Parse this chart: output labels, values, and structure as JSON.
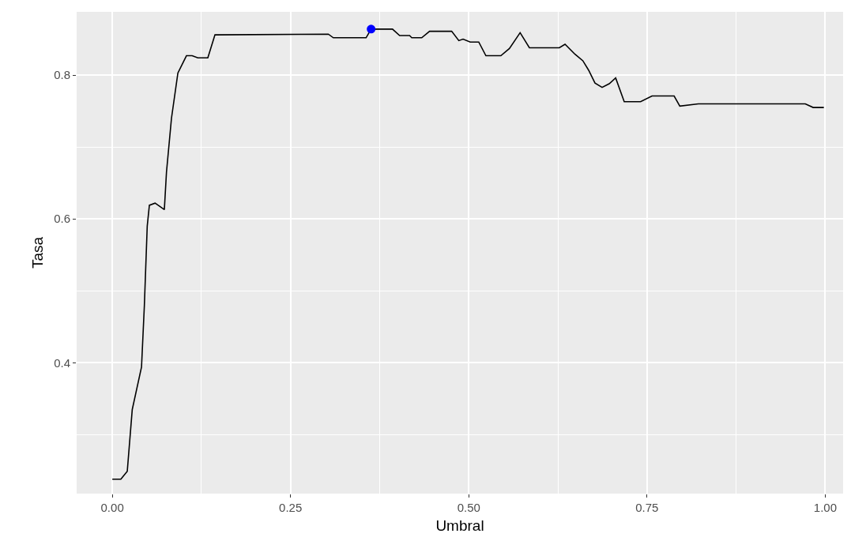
{
  "chart_data": {
    "type": "line",
    "xlabel": "Umbral",
    "ylabel": "Tasa",
    "xlim": [
      -0.05,
      1.025
    ],
    "ylim": [
      0.218,
      0.888
    ],
    "xticks": [
      {
        "value": 0,
        "label": "0.00"
      },
      {
        "value": 0.25,
        "label": "0.25"
      },
      {
        "value": 0.5,
        "label": "0.50"
      },
      {
        "value": 0.75,
        "label": "0.75"
      },
      {
        "value": 1,
        "label": "1.00"
      }
    ],
    "yticks": [
      0.4,
      0.6,
      0.8
    ],
    "grid": true,
    "series": [
      {
        "color": "#000000",
        "marker": "none",
        "line_style": "solid",
        "x": [
          0,
          0.012,
          0.021,
          0.028,
          0.041,
          0.045,
          0.049,
          0.052,
          0.06,
          0.073,
          0.076,
          0.083,
          0.092,
          0.104,
          0.112,
          0.12,
          0.134,
          0.144,
          0.303,
          0.31,
          0.356,
          0.363,
          0.393,
          0.403,
          0.417,
          0.42,
          0.434,
          0.445,
          0.476,
          0.486,
          0.492,
          0.502,
          0.514,
          0.524,
          0.545,
          0.557,
          0.572,
          0.585,
          0.627,
          0.635,
          0.649,
          0.66,
          0.668,
          0.677,
          0.687,
          0.697,
          0.706,
          0.718,
          0.741,
          0.757,
          0.788,
          0.796,
          0.822,
          0.972,
          0.983,
          0.998
        ],
        "values": [
          0.238,
          0.238,
          0.249,
          0.335,
          0.394,
          0.48,
          0.59,
          0.619,
          0.622,
          0.613,
          0.665,
          0.74,
          0.803,
          0.827,
          0.827,
          0.824,
          0.824,
          0.856,
          0.857,
          0.852,
          0.852,
          0.864,
          0.864,
          0.855,
          0.855,
          0.852,
          0.852,
          0.861,
          0.861,
          0.848,
          0.85,
          0.846,
          0.846,
          0.827,
          0.827,
          0.837,
          0.859,
          0.838,
          0.838,
          0.843,
          0.829,
          0.82,
          0.807,
          0.789,
          0.783,
          0.788,
          0.796,
          0.763,
          0.763,
          0.771,
          0.771,
          0.757,
          0.76,
          0.76,
          0.755,
          0.755
        ]
      },
      {
        "type": "scatter",
        "color": "#0000ff",
        "marker": "circle",
        "x": [
          0.363
        ],
        "values": [
          0.864
        ]
      }
    ]
  }
}
